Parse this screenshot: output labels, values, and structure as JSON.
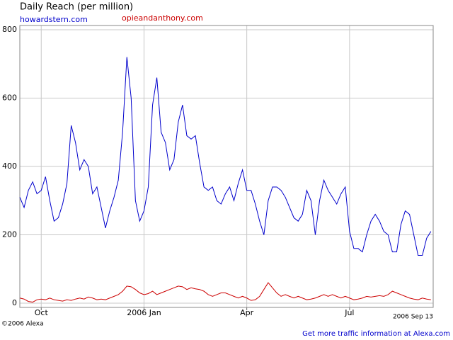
{
  "chart_data": {
    "type": "line",
    "title": "Daily Reach (per million)",
    "categories": [
      null,
      null,
      null,
      null,
      null,
      "Oct",
      null,
      null,
      null,
      null,
      null,
      null,
      null,
      null,
      null,
      null,
      null,
      null,
      null,
      null,
      null,
      null,
      null,
      null,
      null,
      null,
      null,
      null,
      null,
      "2006 Jan",
      null,
      null,
      null,
      null,
      null,
      null,
      null,
      null,
      null,
      null,
      null,
      null,
      null,
      null,
      null,
      null,
      null,
      null,
      null,
      null,
      null,
      null,
      null,
      "Apr",
      null,
      null,
      null,
      null,
      null,
      null,
      null,
      null,
      null,
      null,
      null,
      null,
      null,
      null,
      null,
      null,
      null,
      null,
      null,
      null,
      null,
      null,
      null,
      "Jul",
      null,
      null,
      null,
      null,
      null,
      null,
      null,
      null,
      null,
      null,
      null,
      null,
      null,
      null,
      null,
      null,
      null,
      null,
      null
    ],
    "series": [
      {
        "name": "howardstern.com",
        "color": "#0000cc",
        "values": [
          310,
          280,
          330,
          355,
          320,
          330,
          370,
          300,
          240,
          250,
          290,
          350,
          520,
          470,
          390,
          420,
          400,
          320,
          340,
          280,
          220,
          270,
          310,
          360,
          500,
          720,
          600,
          300,
          240,
          270,
          340,
          580,
          660,
          500,
          470,
          390,
          420,
          530,
          580,
          490,
          480,
          490,
          410,
          340,
          330,
          340,
          300,
          290,
          320,
          340,
          300,
          350,
          390,
          330,
          330,
          290,
          240,
          200,
          300,
          340,
          340,
          330,
          310,
          280,
          250,
          240,
          260,
          330,
          300,
          200,
          300,
          360,
          330,
          310,
          290,
          320,
          340,
          210,
          160,
          160,
          150,
          200,
          240,
          260,
          240,
          210,
          200,
          150,
          150,
          230,
          270,
          260,
          200,
          140,
          140,
          190,
          210
        ]
      },
      {
        "name": "opieandanthony.com",
        "color": "#cc0000",
        "values": [
          15,
          12,
          5,
          3,
          10,
          12,
          10,
          15,
          10,
          8,
          6,
          10,
          8,
          12,
          15,
          12,
          18,
          15,
          10,
          12,
          10,
          15,
          20,
          25,
          35,
          50,
          48,
          40,
          30,
          25,
          28,
          35,
          25,
          30,
          35,
          40,
          45,
          50,
          48,
          40,
          45,
          42,
          40,
          35,
          25,
          20,
          25,
          30,
          30,
          25,
          20,
          15,
          20,
          15,
          8,
          10,
          20,
          40,
          60,
          45,
          30,
          20,
          25,
          20,
          15,
          20,
          15,
          10,
          12,
          15,
          20,
          25,
          20,
          25,
          20,
          15,
          20,
          15,
          10,
          12,
          15,
          20,
          18,
          20,
          22,
          20,
          25,
          35,
          30,
          25,
          20,
          15,
          12,
          10,
          15,
          12,
          10
        ]
      }
    ],
    "ylim": [
      0,
      800
    ],
    "yticks": [
      0,
      200,
      400,
      600,
      800
    ],
    "grid": true,
    "end_date": "2006 Sep 13",
    "copyright": "©2006 Alexa",
    "footer_link": "Get more traffic information at Alexa.com"
  }
}
